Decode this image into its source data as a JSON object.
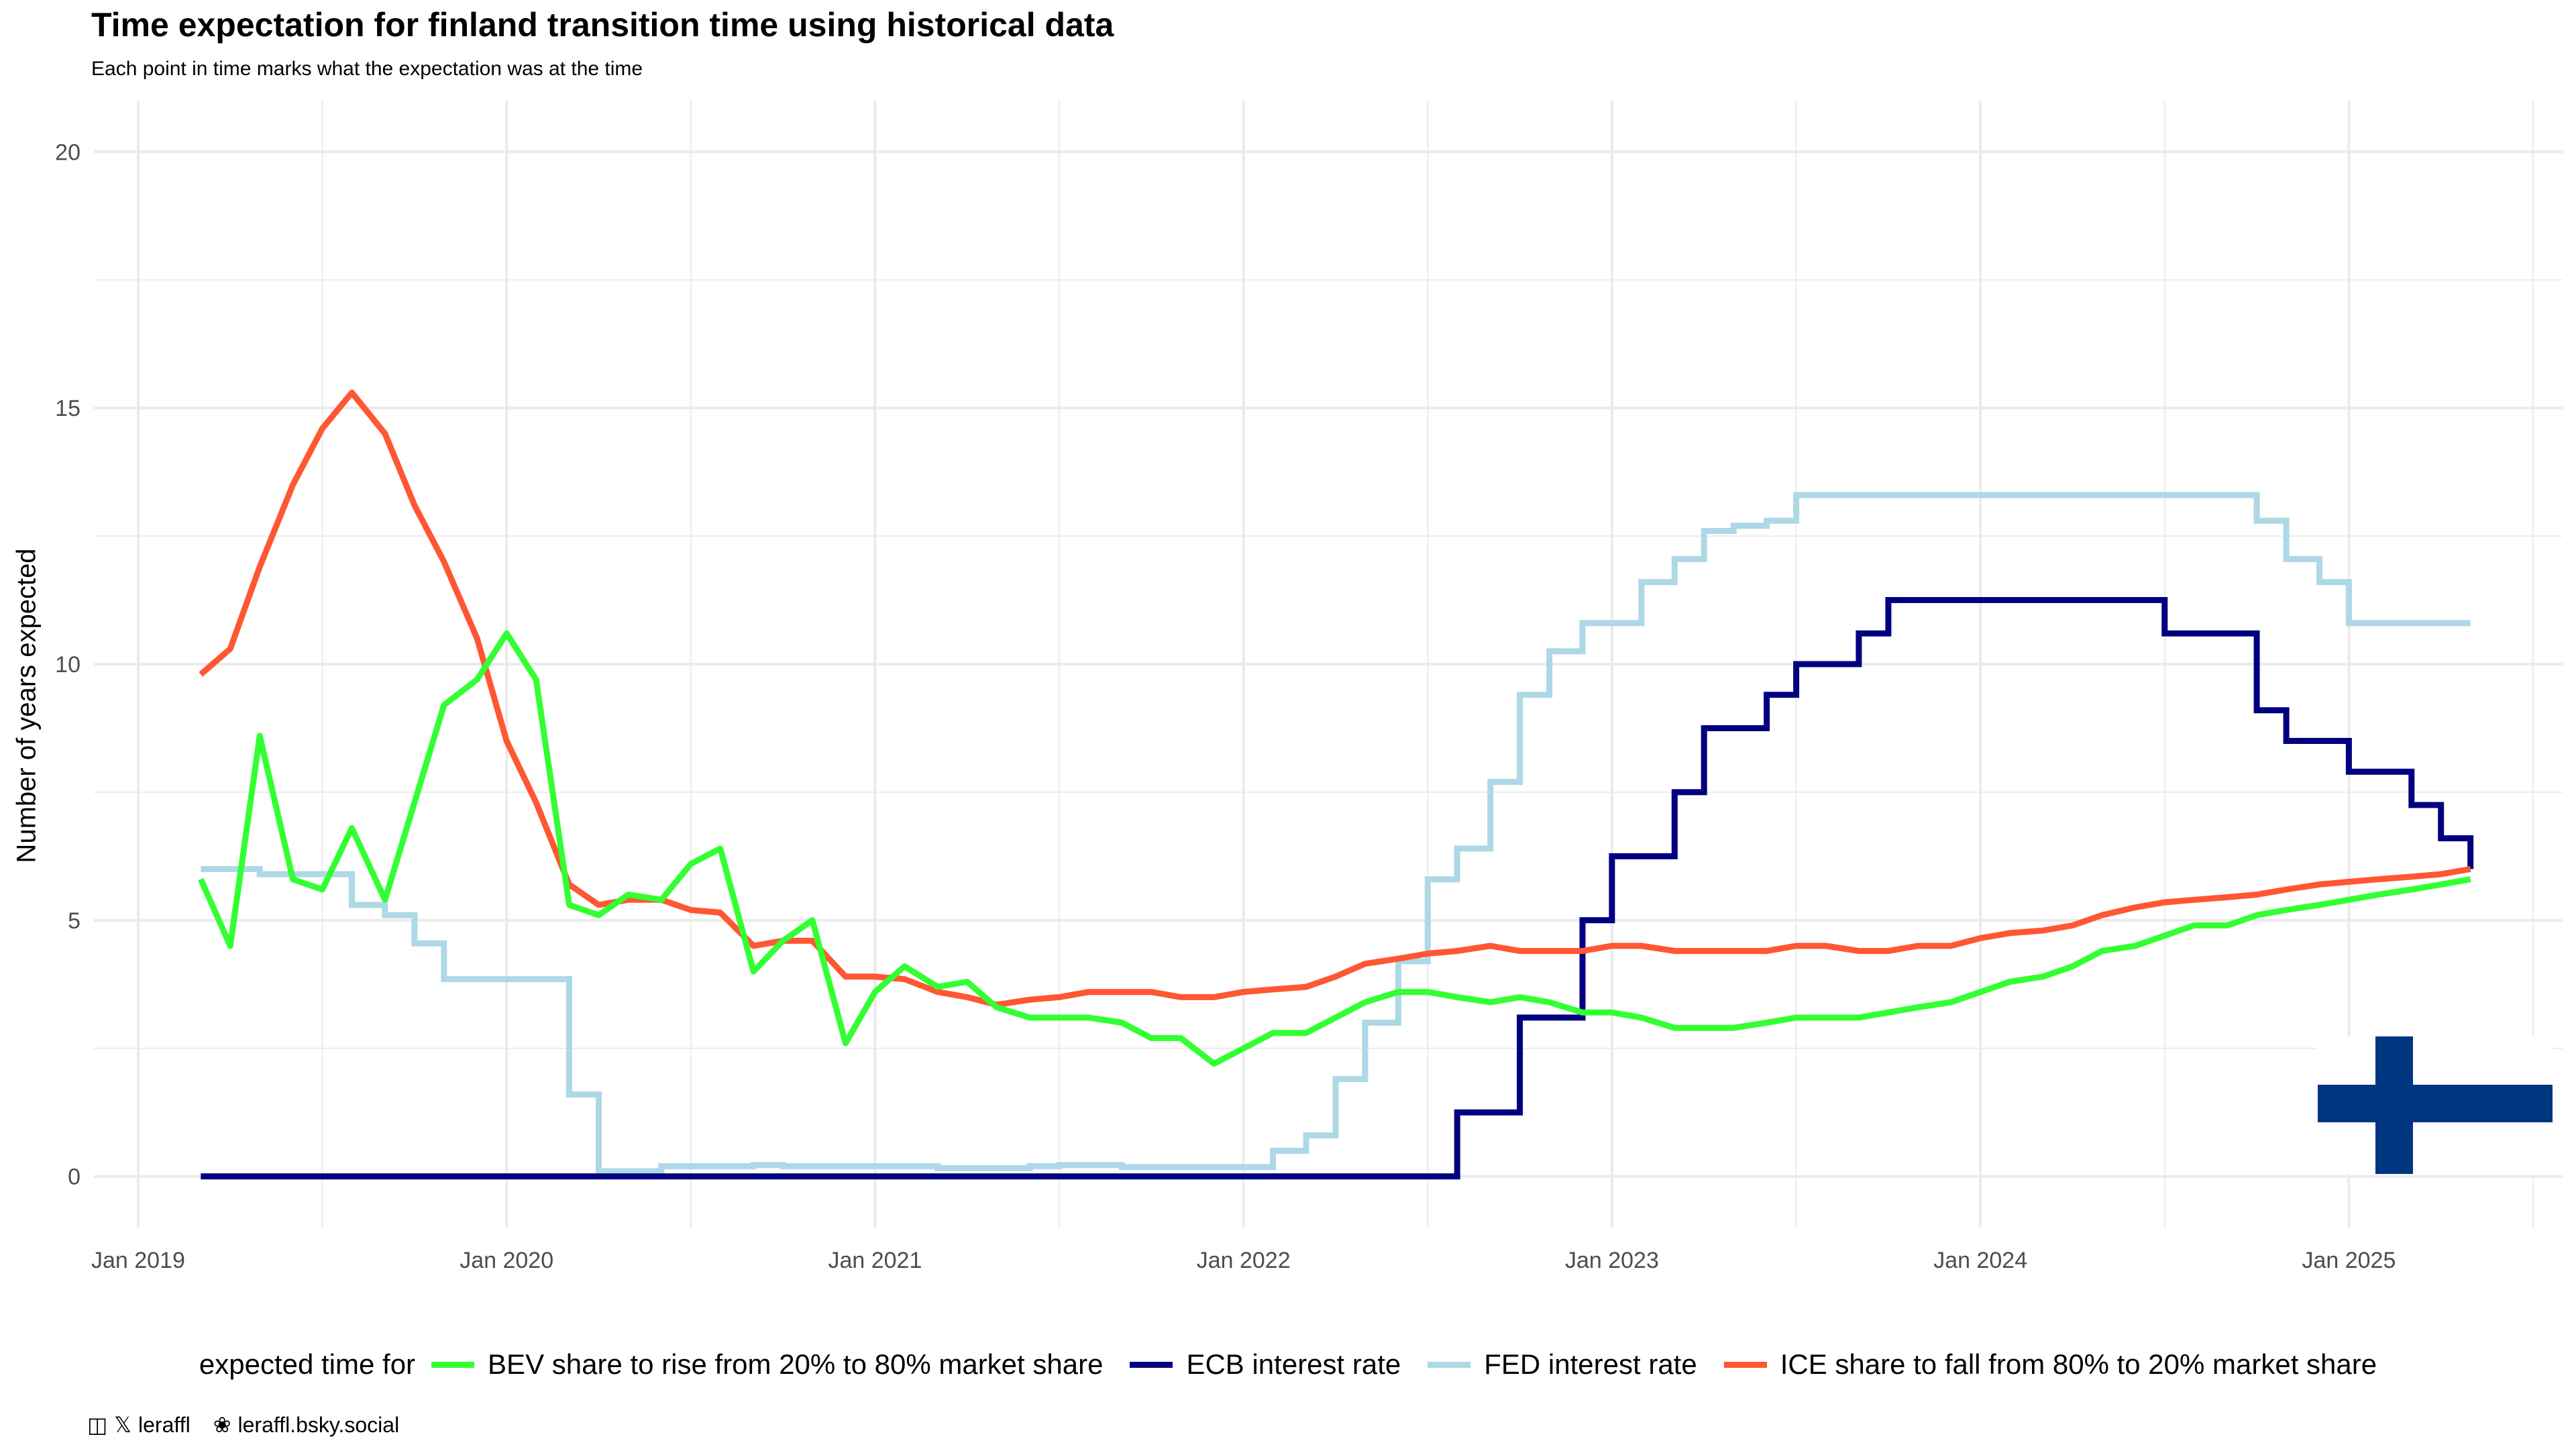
{
  "title": "Time expectation for finland transition time using historical data",
  "subtitle": "Each point in time marks what the expectation was at the time",
  "footer": {
    "handle_label": "leraffl",
    "bsky_label": "leraffl.bsky.social",
    "icons": [
      "mastodon-icon",
      "x-icon",
      "butterfly-icon"
    ]
  },
  "colors": {
    "bev": "#33FF33",
    "ecb": "#000080",
    "fed": "#ADD8E6",
    "ice": "#FF5733",
    "flag_blue": "#003580",
    "grid": "#EBEBEB"
  },
  "chart_data": {
    "type": "line",
    "title": "Time expectation for finland transition time using historical data",
    "subtitle": "Each point in time marks what the expectation was at the time",
    "xlabel": "",
    "ylabel": "Number of years expected",
    "xlim": [
      2018.88,
      2025.58
    ],
    "ylim": [
      -1,
      21
    ],
    "x_ticks": [
      2019,
      2020,
      2021,
      2022,
      2023,
      2024,
      2025
    ],
    "x_tick_labels": [
      "Jan 2019",
      "Jan 2020",
      "Jan 2021",
      "Jan 2022",
      "Jan 2023",
      "Jan 2024",
      "Jan 2025"
    ],
    "y_ticks": [
      0,
      5,
      10,
      15,
      20
    ],
    "y_tick_labels": [
      "0",
      "5",
      "10",
      "15",
      "20"
    ],
    "grid": true,
    "legend_title": "expected time for",
    "legend_position": "bottom",
    "flag": "Finland",
    "series": [
      {
        "name": "BEV share to rise from 20% to 80% market share",
        "color": "#33FF33",
        "style": "line",
        "points": [
          [
            2019.17,
            5.8
          ],
          [
            2019.25,
            4.5
          ],
          [
            2019.33,
            8.6
          ],
          [
            2019.42,
            5.8
          ],
          [
            2019.5,
            5.6
          ],
          [
            2019.58,
            6.8
          ],
          [
            2019.67,
            5.4
          ],
          [
            2019.75,
            7.3
          ],
          [
            2019.83,
            9.2
          ],
          [
            2019.92,
            9.7
          ],
          [
            2020.0,
            10.6
          ],
          [
            2020.08,
            9.7
          ],
          [
            2020.17,
            5.3
          ],
          [
            2020.25,
            5.1
          ],
          [
            2020.33,
            5.5
          ],
          [
            2020.42,
            5.4
          ],
          [
            2020.5,
            6.1
          ],
          [
            2020.58,
            6.4
          ],
          [
            2020.67,
            4.0
          ],
          [
            2020.75,
            4.6
          ],
          [
            2020.83,
            5.0
          ],
          [
            2020.92,
            2.6
          ],
          [
            2021.0,
            3.6
          ],
          [
            2021.08,
            4.1
          ],
          [
            2021.17,
            3.7
          ],
          [
            2021.25,
            3.8
          ],
          [
            2021.33,
            3.3
          ],
          [
            2021.42,
            3.1
          ],
          [
            2021.5,
            3.1
          ],
          [
            2021.58,
            3.1
          ],
          [
            2021.67,
            3.0
          ],
          [
            2021.75,
            2.7
          ],
          [
            2021.83,
            2.7
          ],
          [
            2021.92,
            2.2
          ],
          [
            2022.0,
            2.5
          ],
          [
            2022.08,
            2.8
          ],
          [
            2022.17,
            2.8
          ],
          [
            2022.25,
            3.1
          ],
          [
            2022.33,
            3.4
          ],
          [
            2022.42,
            3.6
          ],
          [
            2022.5,
            3.6
          ],
          [
            2022.58,
            3.5
          ],
          [
            2022.67,
            3.4
          ],
          [
            2022.75,
            3.5
          ],
          [
            2022.83,
            3.4
          ],
          [
            2022.92,
            3.2
          ],
          [
            2023.0,
            3.2
          ],
          [
            2023.08,
            3.1
          ],
          [
            2023.17,
            2.9
          ],
          [
            2023.25,
            2.9
          ],
          [
            2023.33,
            2.9
          ],
          [
            2023.42,
            3.0
          ],
          [
            2023.5,
            3.1
          ],
          [
            2023.58,
            3.1
          ],
          [
            2023.67,
            3.1
          ],
          [
            2023.75,
            3.2
          ],
          [
            2023.83,
            3.3
          ],
          [
            2023.92,
            3.4
          ],
          [
            2024.0,
            3.6
          ],
          [
            2024.08,
            3.8
          ],
          [
            2024.17,
            3.9
          ],
          [
            2024.25,
            4.1
          ],
          [
            2024.33,
            4.4
          ],
          [
            2024.42,
            4.5
          ],
          [
            2024.5,
            4.7
          ],
          [
            2024.58,
            4.9
          ],
          [
            2024.67,
            4.9
          ],
          [
            2024.75,
            5.1
          ],
          [
            2024.83,
            5.2
          ],
          [
            2024.92,
            5.3
          ],
          [
            2025.0,
            5.4
          ],
          [
            2025.08,
            5.5
          ],
          [
            2025.17,
            5.6
          ],
          [
            2025.25,
            5.7
          ],
          [
            2025.33,
            5.8
          ]
        ]
      },
      {
        "name": "ECB interest rate",
        "color": "#000080",
        "style": "step",
        "points": [
          [
            2019.17,
            0
          ],
          [
            2022.58,
            0
          ],
          [
            2022.58,
            1.25
          ],
          [
            2022.75,
            1.25
          ],
          [
            2022.75,
            3.1
          ],
          [
            2022.92,
            3.1
          ],
          [
            2022.92,
            5.0
          ],
          [
            2023.0,
            5.0
          ],
          [
            2023.0,
            6.25
          ],
          [
            2023.17,
            6.25
          ],
          [
            2023.17,
            7.5
          ],
          [
            2023.25,
            7.5
          ],
          [
            2023.25,
            8.75
          ],
          [
            2023.42,
            8.75
          ],
          [
            2023.42,
            9.4
          ],
          [
            2023.5,
            9.4
          ],
          [
            2023.5,
            10.0
          ],
          [
            2023.67,
            10.0
          ],
          [
            2023.67,
            10.6
          ],
          [
            2023.75,
            10.6
          ],
          [
            2023.75,
            11.25
          ],
          [
            2024.5,
            11.25
          ],
          [
            2024.5,
            10.6
          ],
          [
            2024.75,
            10.6
          ],
          [
            2024.75,
            9.1
          ],
          [
            2024.83,
            9.1
          ],
          [
            2024.83,
            8.5
          ],
          [
            2025.0,
            8.5
          ],
          [
            2025.0,
            7.9
          ],
          [
            2025.17,
            7.9
          ],
          [
            2025.17,
            7.25
          ],
          [
            2025.25,
            7.25
          ],
          [
            2025.25,
            6.6
          ],
          [
            2025.33,
            6.6
          ],
          [
            2025.33,
            6.0
          ]
        ]
      },
      {
        "name": "FED interest rate",
        "color": "#ADD8E6",
        "style": "step",
        "points": [
          [
            2019.17,
            6.0
          ],
          [
            2019.33,
            6.0
          ],
          [
            2019.33,
            5.9
          ],
          [
            2019.58,
            5.9
          ],
          [
            2019.58,
            5.3
          ],
          [
            2019.67,
            5.3
          ],
          [
            2019.67,
            5.1
          ],
          [
            2019.75,
            5.1
          ],
          [
            2019.75,
            4.55
          ],
          [
            2019.83,
            4.55
          ],
          [
            2019.83,
            3.85
          ],
          [
            2020.17,
            3.85
          ],
          [
            2020.17,
            1.6
          ],
          [
            2020.25,
            1.6
          ],
          [
            2020.25,
            0.1
          ],
          [
            2020.42,
            0.1
          ],
          [
            2020.42,
            0.2
          ],
          [
            2020.67,
            0.2
          ],
          [
            2020.67,
            0.22
          ],
          [
            2020.75,
            0.22
          ],
          [
            2020.75,
            0.2
          ],
          [
            2021.17,
            0.2
          ],
          [
            2021.17,
            0.16
          ],
          [
            2021.42,
            0.16
          ],
          [
            2021.42,
            0.2
          ],
          [
            2021.5,
            0.2
          ],
          [
            2021.5,
            0.22
          ],
          [
            2021.67,
            0.22
          ],
          [
            2021.67,
            0.18
          ],
          [
            2022.0,
            0.18
          ],
          [
            2022.0,
            0.18
          ],
          [
            2022.08,
            0.18
          ],
          [
            2022.08,
            0.5
          ],
          [
            2022.17,
            0.5
          ],
          [
            2022.17,
            0.8
          ],
          [
            2022.25,
            0.8
          ],
          [
            2022.25,
            1.9
          ],
          [
            2022.33,
            1.9
          ],
          [
            2022.33,
            3.0
          ],
          [
            2022.42,
            3.0
          ],
          [
            2022.42,
            4.2
          ],
          [
            2022.5,
            4.2
          ],
          [
            2022.5,
            5.8
          ],
          [
            2022.58,
            5.8
          ],
          [
            2022.58,
            6.4
          ],
          [
            2022.67,
            6.4
          ],
          [
            2022.67,
            7.7
          ],
          [
            2022.75,
            7.7
          ],
          [
            2022.75,
            9.4
          ],
          [
            2022.83,
            9.4
          ],
          [
            2022.83,
            10.25
          ],
          [
            2022.92,
            10.25
          ],
          [
            2022.92,
            10.8
          ],
          [
            2023.08,
            10.8
          ],
          [
            2023.08,
            11.6
          ],
          [
            2023.17,
            11.6
          ],
          [
            2023.17,
            12.05
          ],
          [
            2023.25,
            12.05
          ],
          [
            2023.25,
            12.6
          ],
          [
            2023.33,
            12.6
          ],
          [
            2023.33,
            12.7
          ],
          [
            2023.42,
            12.7
          ],
          [
            2023.42,
            12.8
          ],
          [
            2023.5,
            12.8
          ],
          [
            2023.5,
            13.3
          ],
          [
            2024.75,
            13.3
          ],
          [
            2024.75,
            12.8
          ],
          [
            2024.83,
            12.8
          ],
          [
            2024.83,
            12.05
          ],
          [
            2024.92,
            12.05
          ],
          [
            2024.92,
            11.6
          ],
          [
            2025.0,
            11.6
          ],
          [
            2025.0,
            10.8
          ],
          [
            2025.33,
            10.8
          ]
        ]
      },
      {
        "name": "ICE share to fall from 80% to 20% market share",
        "color": "#FF5733",
        "style": "line",
        "points": [
          [
            2019.17,
            9.8
          ],
          [
            2019.25,
            10.3
          ],
          [
            2019.33,
            11.9
          ],
          [
            2019.42,
            13.5
          ],
          [
            2019.5,
            14.6
          ],
          [
            2019.58,
            15.3
          ],
          [
            2019.67,
            14.5
          ],
          [
            2019.75,
            13.1
          ],
          [
            2019.83,
            12.0
          ],
          [
            2019.92,
            10.5
          ],
          [
            2020.0,
            8.5
          ],
          [
            2020.08,
            7.3
          ],
          [
            2020.17,
            5.7
          ],
          [
            2020.25,
            5.3
          ],
          [
            2020.33,
            5.4
          ],
          [
            2020.42,
            5.4
          ],
          [
            2020.5,
            5.2
          ],
          [
            2020.58,
            5.15
          ],
          [
            2020.67,
            4.5
          ],
          [
            2020.75,
            4.6
          ],
          [
            2020.83,
            4.6
          ],
          [
            2020.92,
            3.9
          ],
          [
            2021.0,
            3.9
          ],
          [
            2021.08,
            3.85
          ],
          [
            2021.17,
            3.6
          ],
          [
            2021.25,
            3.5
          ],
          [
            2021.33,
            3.35
          ],
          [
            2021.42,
            3.45
          ],
          [
            2021.5,
            3.5
          ],
          [
            2021.58,
            3.6
          ],
          [
            2021.67,
            3.6
          ],
          [
            2021.75,
            3.6
          ],
          [
            2021.83,
            3.5
          ],
          [
            2021.92,
            3.5
          ],
          [
            2022.0,
            3.6
          ],
          [
            2022.08,
            3.65
          ],
          [
            2022.17,
            3.7
          ],
          [
            2022.25,
            3.9
          ],
          [
            2022.33,
            4.15
          ],
          [
            2022.42,
            4.25
          ],
          [
            2022.5,
            4.35
          ],
          [
            2022.58,
            4.4
          ],
          [
            2022.67,
            4.5
          ],
          [
            2022.75,
            4.4
          ],
          [
            2022.83,
            4.4
          ],
          [
            2022.92,
            4.4
          ],
          [
            2023.0,
            4.5
          ],
          [
            2023.08,
            4.5
          ],
          [
            2023.17,
            4.4
          ],
          [
            2023.25,
            4.4
          ],
          [
            2023.33,
            4.4
          ],
          [
            2023.42,
            4.4
          ],
          [
            2023.5,
            4.5
          ],
          [
            2023.58,
            4.5
          ],
          [
            2023.67,
            4.4
          ],
          [
            2023.75,
            4.4
          ],
          [
            2023.83,
            4.5
          ],
          [
            2023.92,
            4.5
          ],
          [
            2024.0,
            4.65
          ],
          [
            2024.08,
            4.75
          ],
          [
            2024.17,
            4.8
          ],
          [
            2024.25,
            4.9
          ],
          [
            2024.33,
            5.1
          ],
          [
            2024.42,
            5.25
          ],
          [
            2024.5,
            5.35
          ],
          [
            2024.58,
            5.4
          ],
          [
            2024.67,
            5.45
          ],
          [
            2024.75,
            5.5
          ],
          [
            2024.83,
            5.6
          ],
          [
            2024.92,
            5.7
          ],
          [
            2025.0,
            5.75
          ],
          [
            2025.08,
            5.8
          ],
          [
            2025.17,
            5.85
          ],
          [
            2025.25,
            5.9
          ],
          [
            2025.33,
            6.0
          ]
        ]
      }
    ]
  }
}
